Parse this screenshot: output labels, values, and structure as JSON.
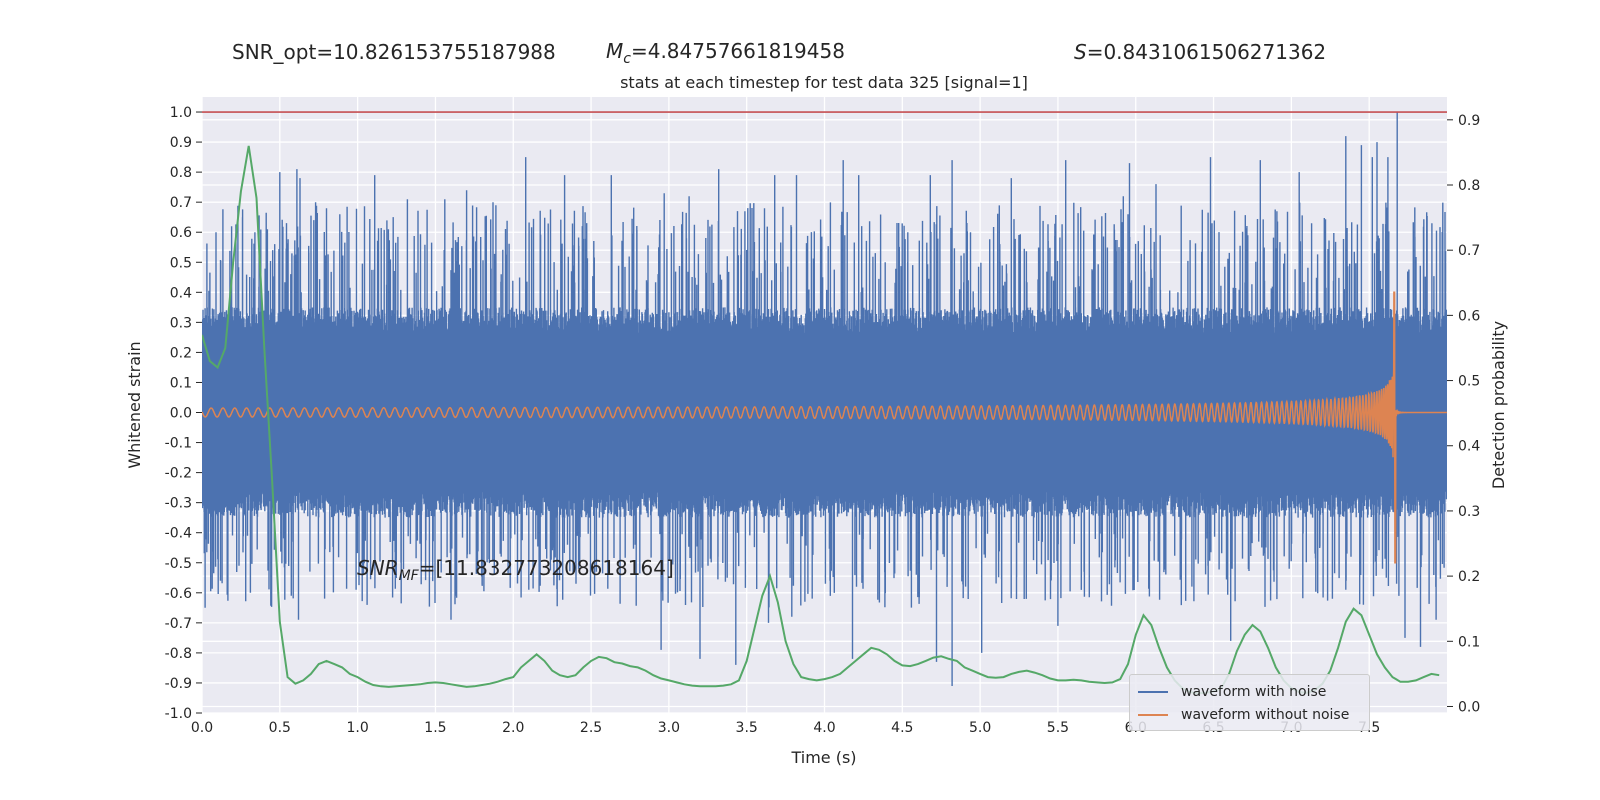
{
  "header": {
    "snr_opt": "SNR_opt=10.826153755187988",
    "mc_symbol": "M",
    "mc_sub": "c",
    "mc_value": "=4.84757661819458",
    "s_symbol": "S",
    "s_value": "=0.8431061506271362"
  },
  "annotation": {
    "snr_symbol": "SNR",
    "snr_sub": "MF",
    "snr_value": "=[11.832773208618164]"
  },
  "chart_data": {
    "type": "line",
    "title": "stats at each timestep for test data 325 [signal=1]",
    "xlabel": "Time (s)",
    "ylabel": "Whitened strain",
    "y2label": "Detection probability",
    "xlim": [
      0,
      8
    ],
    "ylim": [
      -1.0,
      1.05
    ],
    "y2lim": [
      -0.01,
      0.935
    ],
    "x_ticks": [
      "0.0",
      "0.5",
      "1.0",
      "1.5",
      "2.0",
      "2.5",
      "3.0",
      "3.5",
      "4.0",
      "4.5",
      "5.0",
      "5.5",
      "6.0",
      "6.5",
      "7.0",
      "7.5"
    ],
    "y_ticks": [
      "-1.0",
      "-0.9",
      "-0.8",
      "-0.7",
      "-0.6",
      "-0.5",
      "-0.4",
      "-0.3",
      "-0.2",
      "-0.1",
      "0.0",
      "0.1",
      "0.2",
      "0.3",
      "0.4",
      "0.5",
      "0.6",
      "0.7",
      "0.8",
      "0.9",
      "1.0"
    ],
    "y2_ticks": [
      "0.0",
      "0.1",
      "0.2",
      "0.3",
      "0.4",
      "0.5",
      "0.6",
      "0.7",
      "0.8",
      "0.9"
    ],
    "threshold_line": {
      "y": 1.0,
      "color": "#c44e52"
    },
    "grid": true,
    "legend_position": "bottom-right",
    "series": [
      {
        "name": "waveform with noise",
        "color": "#4c72b0",
        "kind": "noise",
        "envelope_core": 0.35,
        "peak_times": [
          0.09,
          0.19,
          0.26,
          0.34,
          0.42,
          0.5,
          0.61,
          0.63,
          0.73,
          0.8,
          1.11,
          1.32,
          1.56,
          1.7,
          1.87,
          2.08,
          2.33,
          2.63,
          2.97,
          3.13,
          3.32,
          3.68,
          3.82,
          4.12,
          4.22,
          4.68,
          4.82,
          5.2,
          5.55,
          5.92,
          5.96,
          6.13,
          6.48,
          6.8,
          7.05,
          7.35,
          7.45,
          7.52,
          7.55,
          7.62,
          7.68
        ],
        "peak_values": [
          0.6,
          0.62,
          0.65,
          0.6,
          0.61,
          0.8,
          0.81,
          0.78,
          0.7,
          0.68,
          0.79,
          0.71,
          0.71,
          0.74,
          0.7,
          0.85,
          0.79,
          0.79,
          0.73,
          0.72,
          0.81,
          0.79,
          0.79,
          0.84,
          0.79,
          0.79,
          0.84,
          0.78,
          0.84,
          0.72,
          0.83,
          0.76,
          0.85,
          0.84,
          0.8,
          0.92,
          0.89,
          0.85,
          0.9,
          0.85,
          1.0
        ],
        "trough_times": [
          0.02,
          0.62,
          0.99,
          1.6,
          2.1,
          2.95,
          3.2,
          3.43,
          3.64,
          3.79,
          4.18,
          4.72,
          4.82,
          5.01,
          5.5,
          6.61,
          7.35,
          7.61,
          7.73,
          7.83,
          7.93
        ],
        "trough_values": [
          -0.65,
          -0.69,
          -0.59,
          -0.69,
          -0.59,
          -0.79,
          -0.82,
          -0.84,
          -0.7,
          -0.68,
          -0.82,
          -0.83,
          -0.91,
          -0.8,
          -0.71,
          -0.76,
          -0.59,
          -0.55,
          -0.75,
          -0.78,
          -0.69
        ]
      },
      {
        "name": "waveform without noise",
        "color": "#dd8452",
        "kind": "chirp",
        "merger_time": 7.67,
        "peak_amplitude": 0.4,
        "min_amplitude": -0.5
      },
      {
        "name": "",
        "color": "#55a868",
        "axis": "right",
        "x": [
          0.0,
          0.05,
          0.1,
          0.15,
          0.2,
          0.25,
          0.3,
          0.35,
          0.4,
          0.45,
          0.5,
          0.55,
          0.6,
          0.65,
          0.7,
          0.75,
          0.8,
          0.85,
          0.9,
          0.95,
          1.0,
          1.05,
          1.1,
          1.15,
          1.2,
          1.25,
          1.3,
          1.35,
          1.4,
          1.45,
          1.5,
          1.55,
          1.6,
          1.65,
          1.7,
          1.75,
          1.8,
          1.85,
          1.9,
          1.95,
          2.0,
          2.05,
          2.1,
          2.15,
          2.2,
          2.25,
          2.3,
          2.35,
          2.4,
          2.45,
          2.5,
          2.55,
          2.6,
          2.65,
          2.7,
          2.75,
          2.8,
          2.85,
          2.9,
          2.95,
          3.0,
          3.05,
          3.1,
          3.15,
          3.2,
          3.25,
          3.3,
          3.35,
          3.4,
          3.45,
          3.5,
          3.55,
          3.6,
          3.65,
          3.7,
          3.75,
          3.8,
          3.85,
          3.9,
          3.95,
          4.0,
          4.05,
          4.1,
          4.15,
          4.2,
          4.25,
          4.3,
          4.35,
          4.4,
          4.45,
          4.5,
          4.55,
          4.6,
          4.65,
          4.7,
          4.75,
          4.8,
          4.85,
          4.9,
          4.95,
          5.0,
          5.05,
          5.1,
          5.15,
          5.2,
          5.25,
          5.3,
          5.35,
          5.4,
          5.45,
          5.5,
          5.55,
          5.6,
          5.65,
          5.7,
          5.75,
          5.8,
          5.85,
          5.9,
          5.95,
          6.0,
          6.05,
          6.1,
          6.15,
          6.2,
          6.25,
          6.3,
          6.35,
          6.4,
          6.45,
          6.5,
          6.55,
          6.6,
          6.65,
          6.7,
          6.75,
          6.8,
          6.85,
          6.9,
          6.95,
          7.0,
          7.05,
          7.1,
          7.15,
          7.2,
          7.25,
          7.3,
          7.35,
          7.4,
          7.45,
          7.5,
          7.55,
          7.6,
          7.65,
          7.7,
          7.75,
          7.8,
          7.85,
          7.9,
          7.95
        ],
        "y": [
          0.57,
          0.53,
          0.52,
          0.55,
          0.68,
          0.79,
          0.86,
          0.78,
          0.55,
          0.35,
          0.13,
          0.045,
          0.035,
          0.04,
          0.05,
          0.065,
          0.07,
          0.065,
          0.06,
          0.05,
          0.045,
          0.038,
          0.033,
          0.031,
          0.03,
          0.031,
          0.032,
          0.033,
          0.034,
          0.036,
          0.037,
          0.036,
          0.034,
          0.032,
          0.03,
          0.031,
          0.033,
          0.035,
          0.038,
          0.042,
          0.045,
          0.06,
          0.07,
          0.08,
          0.07,
          0.055,
          0.048,
          0.045,
          0.048,
          0.06,
          0.07,
          0.076,
          0.074,
          0.068,
          0.066,
          0.062,
          0.06,
          0.055,
          0.048,
          0.043,
          0.04,
          0.037,
          0.034,
          0.032,
          0.031,
          0.031,
          0.031,
          0.032,
          0.034,
          0.04,
          0.07,
          0.12,
          0.17,
          0.2,
          0.16,
          0.1,
          0.065,
          0.045,
          0.042,
          0.04,
          0.042,
          0.045,
          0.05,
          0.06,
          0.07,
          0.08,
          0.09,
          0.087,
          0.08,
          0.07,
          0.063,
          0.062,
          0.065,
          0.07,
          0.075,
          0.077,
          0.073,
          0.07,
          0.06,
          0.055,
          0.05,
          0.045,
          0.044,
          0.045,
          0.05,
          0.053,
          0.055,
          0.052,
          0.048,
          0.043,
          0.04,
          0.04,
          0.041,
          0.04,
          0.038,
          0.037,
          0.036,
          0.037,
          0.042,
          0.065,
          0.11,
          0.14,
          0.125,
          0.09,
          0.06,
          0.04,
          0.028,
          0.022,
          0.02,
          0.021,
          0.023,
          0.028,
          0.05,
          0.085,
          0.11,
          0.125,
          0.115,
          0.09,
          0.06,
          0.04,
          0.028,
          0.022,
          0.021,
          0.025,
          0.035,
          0.055,
          0.09,
          0.13,
          0.15,
          0.14,
          0.11,
          0.08,
          0.06,
          0.045,
          0.038,
          0.038,
          0.04,
          0.045,
          0.05,
          0.048
        ]
      }
    ]
  },
  "legend": {
    "items": [
      {
        "label": "waveform with noise",
        "color": "#4c72b0"
      },
      {
        "label": "waveform without noise",
        "color": "#dd8452"
      }
    ]
  }
}
